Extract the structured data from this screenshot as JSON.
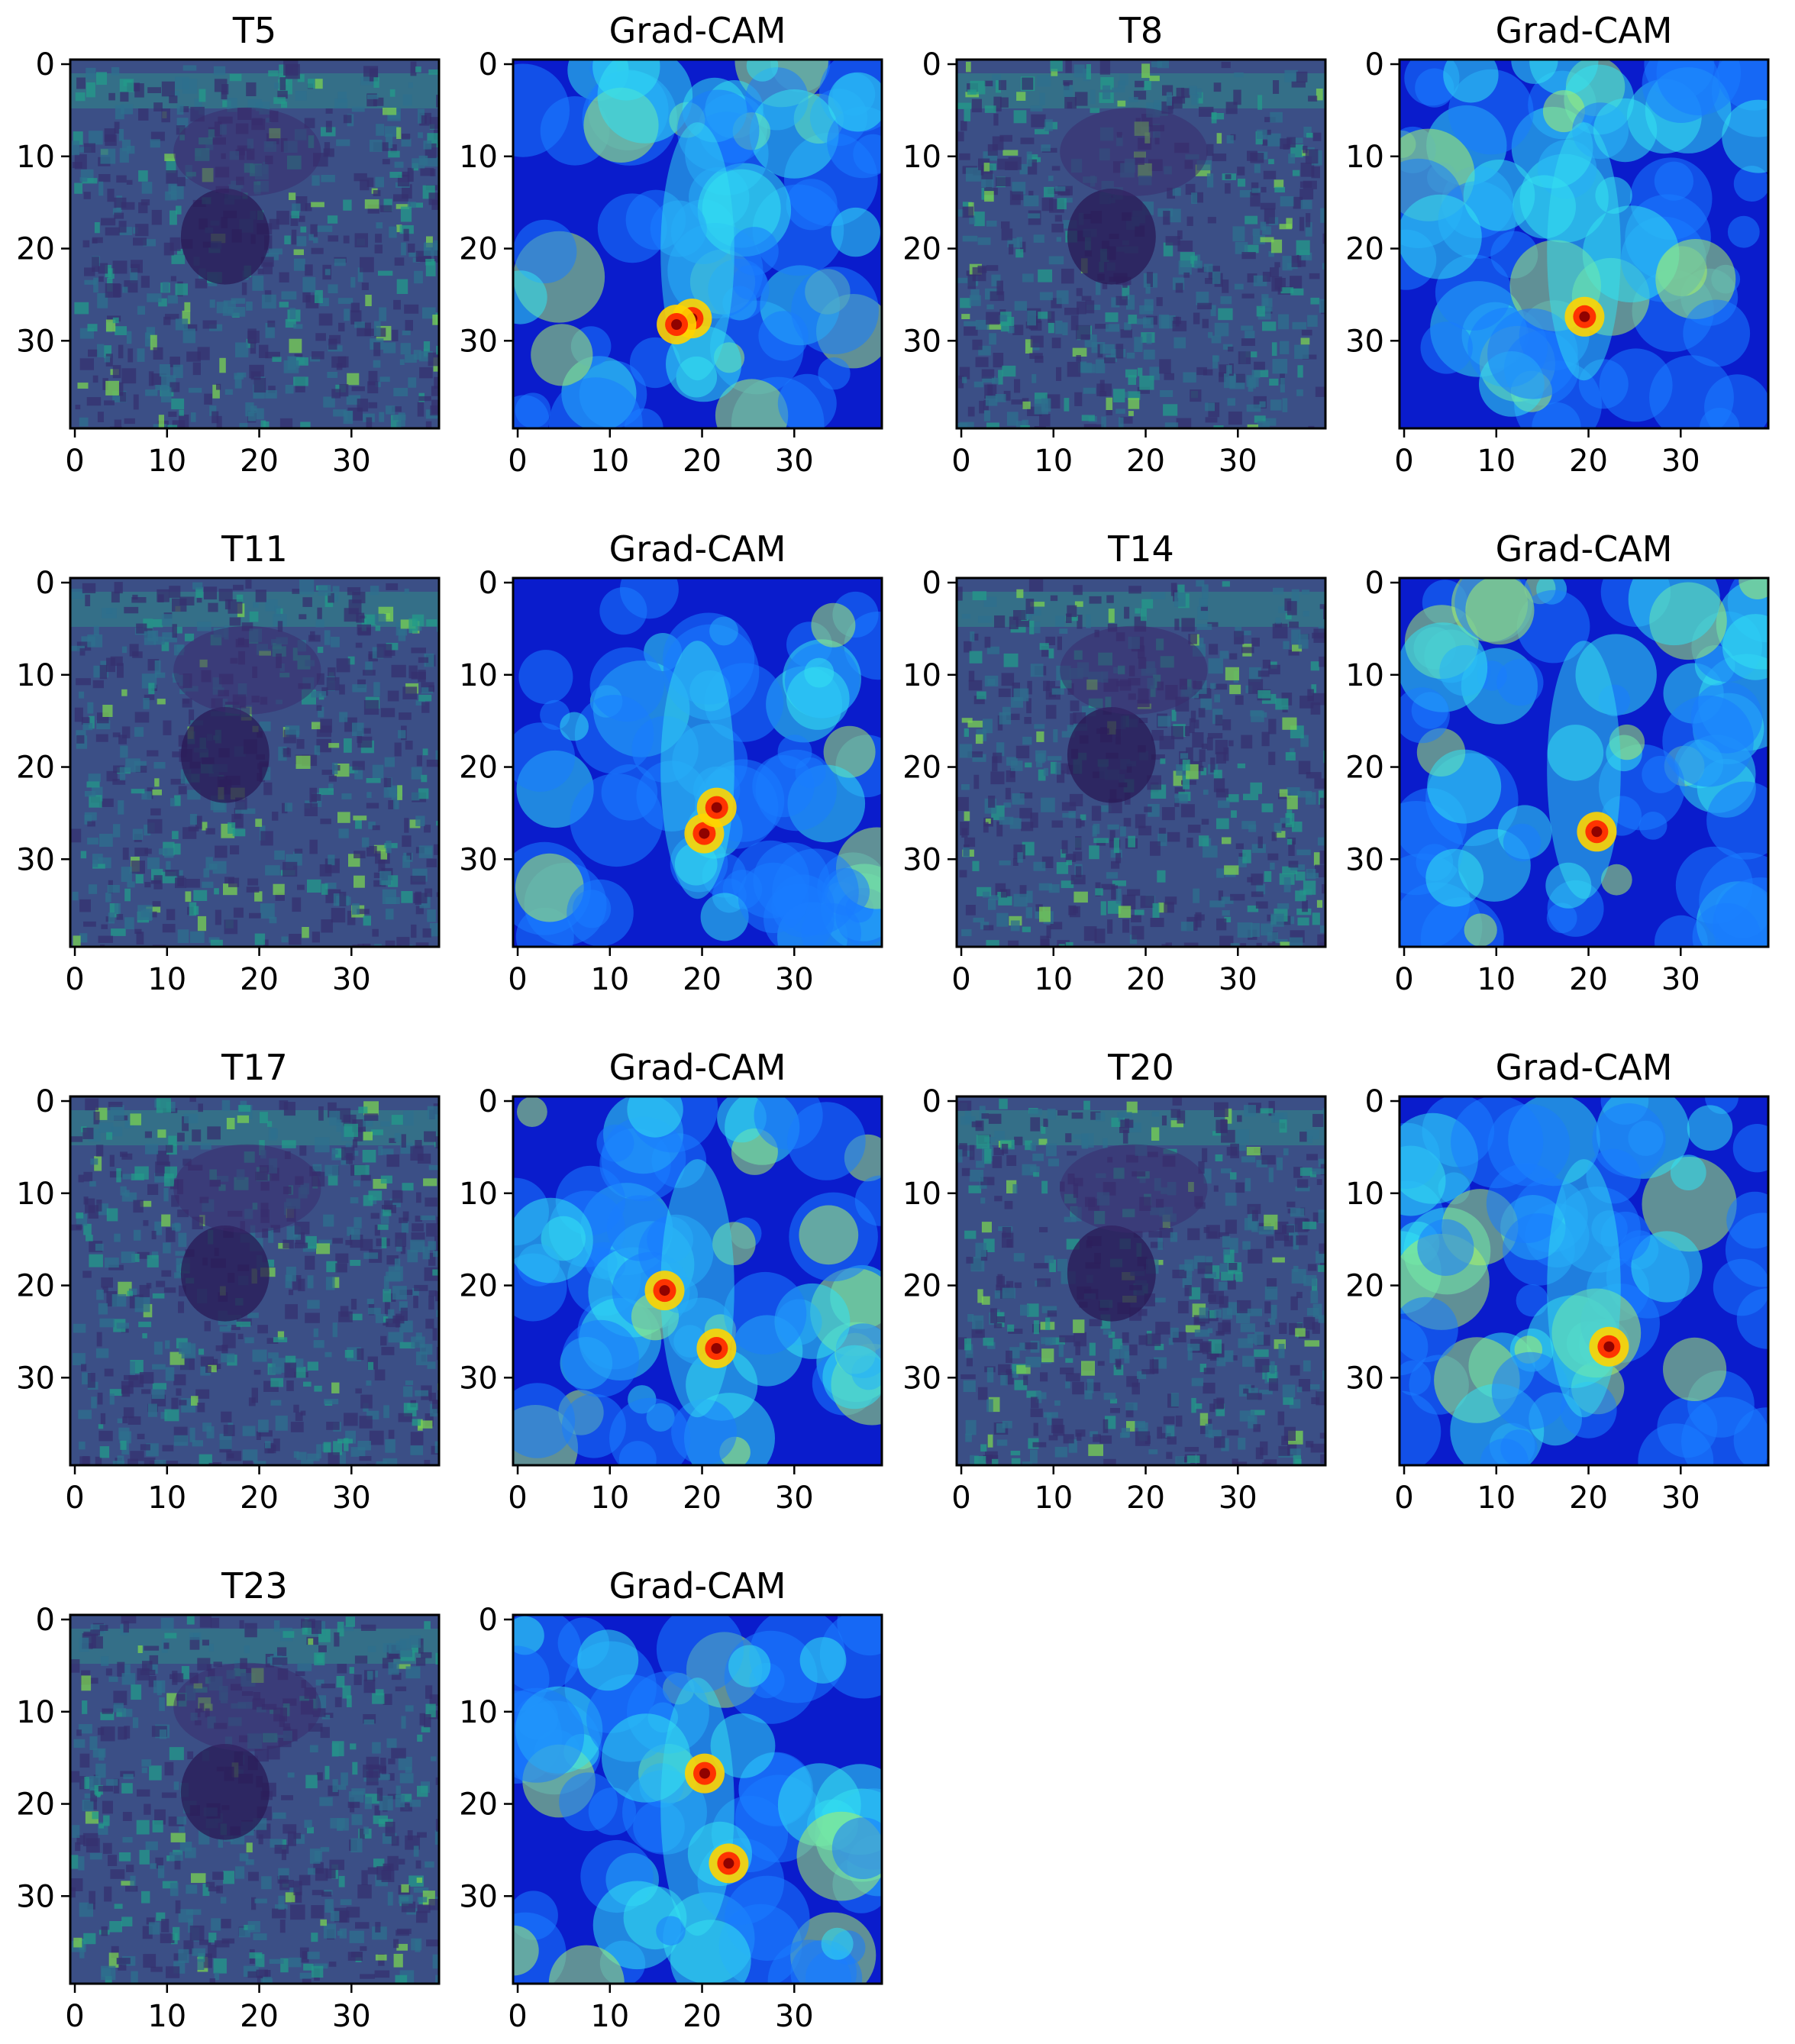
{
  "figure": {
    "panels": [
      {
        "title": "T5",
        "kind": "input"
      },
      {
        "title": "Grad-CAM",
        "kind": "gradcam"
      },
      {
        "title": "T8",
        "kind": "input"
      },
      {
        "title": "Grad-CAM",
        "kind": "gradcam"
      },
      {
        "title": "T11",
        "kind": "input"
      },
      {
        "title": "Grad-CAM",
        "kind": "gradcam"
      },
      {
        "title": "T14",
        "kind": "input"
      },
      {
        "title": "Grad-CAM",
        "kind": "gradcam"
      },
      {
        "title": "T17",
        "kind": "input"
      },
      {
        "title": "Grad-CAM",
        "kind": "gradcam"
      },
      {
        "title": "T20",
        "kind": "input"
      },
      {
        "title": "Grad-CAM",
        "kind": "gradcam"
      },
      {
        "title": "T23",
        "kind": "input"
      },
      {
        "title": "Grad-CAM",
        "kind": "gradcam"
      }
    ],
    "x_ticks": [
      "0",
      "10",
      "20",
      "30"
    ],
    "y_ticks": [
      "0",
      "10",
      "20",
      "30"
    ],
    "colormaps": {
      "input": "viridis-like (dark purple to green/yellow)",
      "gradcam": "jet (blue to cyan, yellow, red)"
    }
  }
}
